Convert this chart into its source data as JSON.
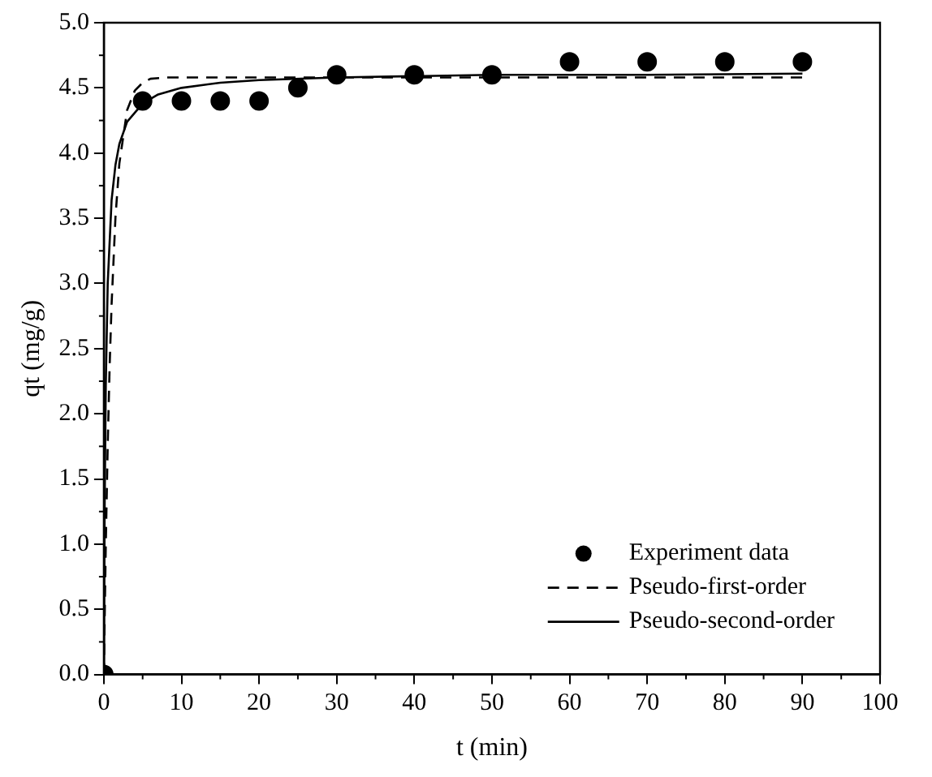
{
  "chart_data": {
    "type": "scatter",
    "xlabel": "t (min)",
    "ylabel": "qt (mg/g)",
    "xlim": [
      0,
      100
    ],
    "xticks": [
      0,
      10,
      20,
      30,
      40,
      50,
      60,
      70,
      80,
      90,
      100
    ],
    "ylim": [
      0,
      5
    ],
    "yticks": [
      {
        "value": 0,
        "label": "0.0"
      },
      {
        "value": 0.5,
        "label": "0.5"
      },
      {
        "value": 1,
        "label": "1.0"
      },
      {
        "value": 1.5,
        "label": "1.5"
      },
      {
        "value": 2,
        "label": "2.0"
      },
      {
        "value": 2.5,
        "label": "2.5"
      },
      {
        "value": 3,
        "label": "3.0"
      },
      {
        "value": 3.5,
        "label": "3.5"
      },
      {
        "value": 4,
        "label": "4.0"
      },
      {
        "value": 4.5,
        "label": "4.5"
      },
      {
        "value": 5,
        "label": "5.0"
      }
    ],
    "grid": false,
    "legend": "bottom right",
    "series": [
      {
        "name": "Experiment data",
        "marker": "circle",
        "color": "#000000",
        "x": [
          0,
          5,
          10,
          15,
          20,
          25,
          30,
          40,
          50,
          60,
          70,
          80,
          90
        ],
        "values": [
          0,
          4.4,
          4.4,
          4.4,
          4.4,
          4.5,
          4.6,
          4.6,
          4.6,
          4.7,
          4.7,
          4.7,
          4.7
        ]
      },
      {
        "name": "Pseudo-first-order",
        "type": "line",
        "marker": "none",
        "line_style": "dashed",
        "color": "#000000",
        "x": [
          0,
          0.25,
          0.5,
          0.75,
          1,
          1.5,
          2,
          3,
          4,
          5,
          6,
          8,
          90
        ],
        "values": [
          0,
          0.99,
          1.76,
          2.37,
          2.84,
          3.51,
          3.92,
          4.33,
          4.48,
          4.54,
          4.57,
          4.58,
          4.58
        ]
      },
      {
        "name": "Pseudo-second-order",
        "type": "line",
        "marker": "none",
        "line_style": "solid",
        "color": "#000000",
        "x": [
          0,
          0.1,
          0.25,
          0.5,
          1,
          1.5,
          2,
          3,
          5,
          7,
          10,
          15,
          20,
          30,
          50,
          70,
          90
        ],
        "values": [
          0,
          1.25,
          2.22,
          3.0,
          3.64,
          3.91,
          4.07,
          4.24,
          4.38,
          4.45,
          4.5,
          4.54,
          4.56,
          4.58,
          4.6,
          4.6,
          4.61
        ]
      }
    ]
  }
}
